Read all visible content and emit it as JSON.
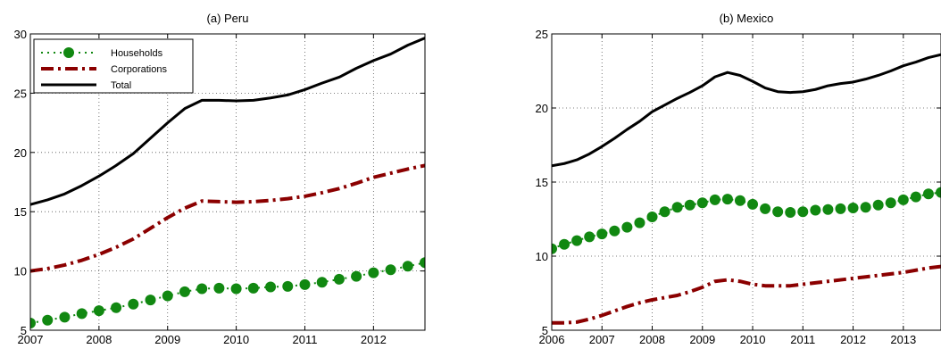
{
  "chart_data": [
    {
      "type": "line",
      "title": "(a) Peru",
      "xlabel": "",
      "ylabel": "",
      "xlim": [
        2007,
        2012.75
      ],
      "ylim": [
        5,
        30
      ],
      "xticks": [
        2007,
        2008,
        2009,
        2010,
        2011,
        2012
      ],
      "yticks": [
        5,
        10,
        15,
        20,
        25,
        30
      ],
      "grid": true,
      "legend": {
        "placement": "top-left",
        "entries": [
          "Households",
          "Corporations",
          "Total"
        ]
      },
      "series": [
        {
          "name": "Households",
          "style": "dotted-markers",
          "color": "#118811",
          "x": [
            2007,
            2007.25,
            2007.5,
            2007.75,
            2008,
            2008.25,
            2008.5,
            2008.75,
            2009,
            2009.25,
            2009.5,
            2009.75,
            2010,
            2010.25,
            2010.5,
            2010.75,
            2011,
            2011.25,
            2011.5,
            2011.75,
            2012,
            2012.25,
            2012.5,
            2012.75
          ],
          "y": [
            5.6,
            5.85,
            6.1,
            6.4,
            6.65,
            6.9,
            7.2,
            7.55,
            7.9,
            8.25,
            8.5,
            8.55,
            8.5,
            8.55,
            8.65,
            8.7,
            8.85,
            9.05,
            9.3,
            9.55,
            9.85,
            10.1,
            10.4,
            10.7
          ]
        },
        {
          "name": "Corporations",
          "style": "dash-dot",
          "color": "#8b0000",
          "x": [
            2007,
            2007.25,
            2007.5,
            2007.75,
            2008,
            2008.25,
            2008.5,
            2008.75,
            2009,
            2009.25,
            2009.5,
            2009.75,
            2010,
            2010.25,
            2010.5,
            2010.75,
            2011,
            2011.25,
            2011.5,
            2011.75,
            2012,
            2012.25,
            2012.5,
            2012.75
          ],
          "y": [
            10.0,
            10.2,
            10.5,
            10.9,
            11.4,
            12.0,
            12.7,
            13.6,
            14.5,
            15.3,
            15.9,
            15.85,
            15.8,
            15.85,
            15.95,
            16.1,
            16.3,
            16.6,
            16.95,
            17.4,
            17.9,
            18.25,
            18.6,
            18.9
          ]
        },
        {
          "name": "Total",
          "style": "solid",
          "color": "#000000",
          "x": [
            2007,
            2007.25,
            2007.5,
            2007.75,
            2008,
            2008.25,
            2008.5,
            2008.75,
            2009,
            2009.25,
            2009.5,
            2009.75,
            2010,
            2010.25,
            2010.5,
            2010.75,
            2011,
            2011.25,
            2011.5,
            2011.75,
            2012,
            2012.25,
            2012.5,
            2012.75
          ],
          "y": [
            15.6,
            16.0,
            16.5,
            17.2,
            18.0,
            18.9,
            19.9,
            21.2,
            22.5,
            23.7,
            24.4,
            24.4,
            24.35,
            24.4,
            24.6,
            24.85,
            25.3,
            25.85,
            26.35,
            27.1,
            27.75,
            28.3,
            29.05,
            29.65
          ]
        }
      ]
    },
    {
      "type": "line",
      "title": "(b) Mexico",
      "xlabel": "",
      "ylabel": "",
      "xlim": [
        2006,
        2013.75
      ],
      "ylim": [
        5,
        25
      ],
      "xticks": [
        2006,
        2007,
        2008,
        2009,
        2010,
        2011,
        2012,
        2013
      ],
      "yticks": [
        5,
        10,
        15,
        20,
        25
      ],
      "grid": true,
      "legend": null,
      "series": [
        {
          "name": "Households",
          "style": "dotted-markers",
          "color": "#118811",
          "x": [
            2006,
            2006.25,
            2006.5,
            2006.75,
            2007,
            2007.25,
            2007.5,
            2007.75,
            2008,
            2008.25,
            2008.5,
            2008.75,
            2009,
            2009.25,
            2009.5,
            2009.75,
            2010,
            2010.25,
            2010.5,
            2010.75,
            2011,
            2011.25,
            2011.5,
            2011.75,
            2012,
            2012.25,
            2012.5,
            2012.75,
            2013,
            2013.25,
            2013.5,
            2013.75
          ],
          "y": [
            10.5,
            10.8,
            11.05,
            11.3,
            11.5,
            11.7,
            11.95,
            12.25,
            12.65,
            13.0,
            13.3,
            13.45,
            13.6,
            13.8,
            13.85,
            13.75,
            13.5,
            13.2,
            13.0,
            12.95,
            13.0,
            13.1,
            13.15,
            13.2,
            13.25,
            13.3,
            13.45,
            13.6,
            13.8,
            14.0,
            14.2,
            14.3
          ]
        },
        {
          "name": "Corporations",
          "style": "dash-dot",
          "color": "#8b0000",
          "x": [
            2006,
            2006.25,
            2006.5,
            2006.75,
            2007,
            2007.25,
            2007.5,
            2007.75,
            2008,
            2008.25,
            2008.5,
            2008.75,
            2009,
            2009.25,
            2009.5,
            2009.75,
            2010,
            2010.25,
            2010.5,
            2010.75,
            2011,
            2011.25,
            2011.5,
            2011.75,
            2012,
            2012.25,
            2012.5,
            2012.75,
            2013,
            2013.25,
            2013.5,
            2013.75
          ],
          "y": [
            5.5,
            5.5,
            5.55,
            5.75,
            6.0,
            6.3,
            6.6,
            6.85,
            7.05,
            7.2,
            7.35,
            7.6,
            7.9,
            8.3,
            8.4,
            8.3,
            8.1,
            8.0,
            8.0,
            8.0,
            8.1,
            8.2,
            8.3,
            8.4,
            8.5,
            8.6,
            8.7,
            8.8,
            8.9,
            9.05,
            9.2,
            9.3
          ]
        },
        {
          "name": "Total",
          "style": "solid",
          "color": "#000000",
          "x": [
            2006,
            2006.25,
            2006.5,
            2006.75,
            2007,
            2007.25,
            2007.5,
            2007.75,
            2008,
            2008.25,
            2008.5,
            2008.75,
            2009,
            2009.25,
            2009.5,
            2009.75,
            2010,
            2010.25,
            2010.5,
            2010.75,
            2011,
            2011.25,
            2011.5,
            2011.75,
            2012,
            2012.25,
            2012.5,
            2012.75,
            2013,
            2013.25,
            2013.5,
            2013.75
          ],
          "y": [
            16.1,
            16.25,
            16.5,
            16.9,
            17.4,
            17.95,
            18.55,
            19.1,
            19.75,
            20.2,
            20.65,
            21.05,
            21.5,
            22.1,
            22.4,
            22.2,
            21.8,
            21.35,
            21.1,
            21.05,
            21.1,
            21.25,
            21.5,
            21.65,
            21.75,
            21.95,
            22.2,
            22.5,
            22.85,
            23.1,
            23.4,
            23.6
          ]
        }
      ]
    }
  ]
}
